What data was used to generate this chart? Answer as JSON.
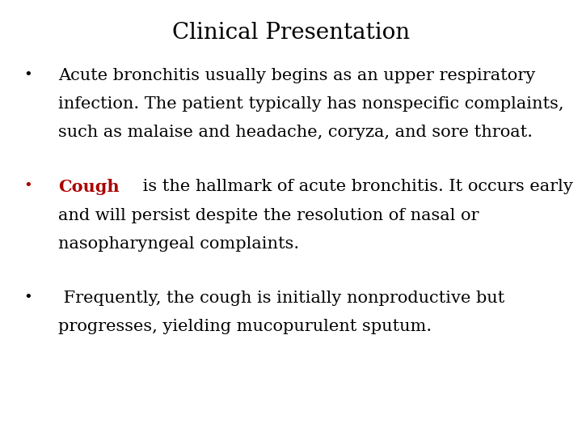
{
  "title": "Clinical Presentation",
  "title_fontsize": 20,
  "title_color": "#000000",
  "title_font": "serif",
  "background_color": "#ffffff",
  "bullet_color_1": "#000000",
  "bullet_color_2": "#aa0000",
  "bullet_color_3": "#000000",
  "body_fontsize": 15,
  "body_font": "serif",
  "bullet1_lines": [
    "Acute bronchitis usually begins as an upper respiratory",
    "infection. The patient typically has nonspecific complaints,",
    "such as malaise and headache, coryza, and sore throat."
  ],
  "bullet2_line1_red": "Cough",
  "bullet2_line1_rest": " is the hallmark of acute bronchitis. It occurs early",
  "bullet2_lines_rest": [
    "and will persist despite the resolution of nasal or",
    "nasopharyngeal complaints."
  ],
  "bullet3_lines": [
    " Frequently, the cough is initially nonproductive but",
    "progresses, yielding mucopurulent sputum."
  ]
}
